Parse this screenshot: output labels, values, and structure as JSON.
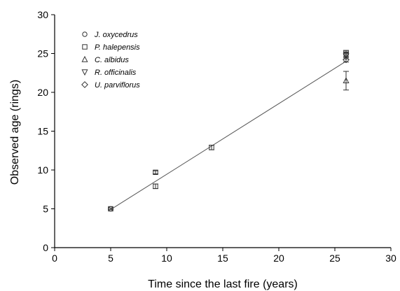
{
  "chart_data": {
    "type": "scatter",
    "xlabel": "Time since the last fire (years)",
    "ylabel": "Observed age (rings)",
    "xlim": [
      0,
      30
    ],
    "ylim": [
      0,
      30
    ],
    "xticks": [
      0,
      5,
      10,
      15,
      20,
      25,
      30
    ],
    "yticks": [
      0,
      5,
      10,
      15,
      20,
      25,
      30
    ],
    "grid": false,
    "legend_position": "top-left",
    "series": [
      {
        "name": "J. oxycedrus",
        "marker": "circle",
        "points": [
          {
            "x": 5,
            "y": 5.0,
            "err": 0.1
          },
          {
            "x": 26,
            "y": 24.9,
            "err": 0.3
          }
        ]
      },
      {
        "name": "P. halepensis",
        "marker": "square",
        "points": [
          {
            "x": 5,
            "y": 5.0,
            "err": 0.1
          },
          {
            "x": 9,
            "y": 9.7,
            "err": 0.2
          },
          {
            "x": 9,
            "y": 7.9,
            "err": 0.3
          },
          {
            "x": 14,
            "y": 12.9,
            "err": 0.3
          },
          {
            "x": 26,
            "y": 25.1,
            "err": 0.3
          }
        ]
      },
      {
        "name": "C. albidus",
        "marker": "triangle-up",
        "points": [
          {
            "x": 26,
            "y": 21.5,
            "err": 1.2
          }
        ]
      },
      {
        "name": "R. officinalis",
        "marker": "triangle-down",
        "points": [
          {
            "x": 26,
            "y": 24.7,
            "err": 0.4
          }
        ]
      },
      {
        "name": "U. parviflorus",
        "marker": "diamond",
        "points": [
          {
            "x": 26,
            "y": 24.2,
            "err": 0.3
          }
        ]
      }
    ],
    "fit_line": {
      "x": [
        5,
        26
      ],
      "y": [
        4.9,
        24.0
      ]
    }
  }
}
